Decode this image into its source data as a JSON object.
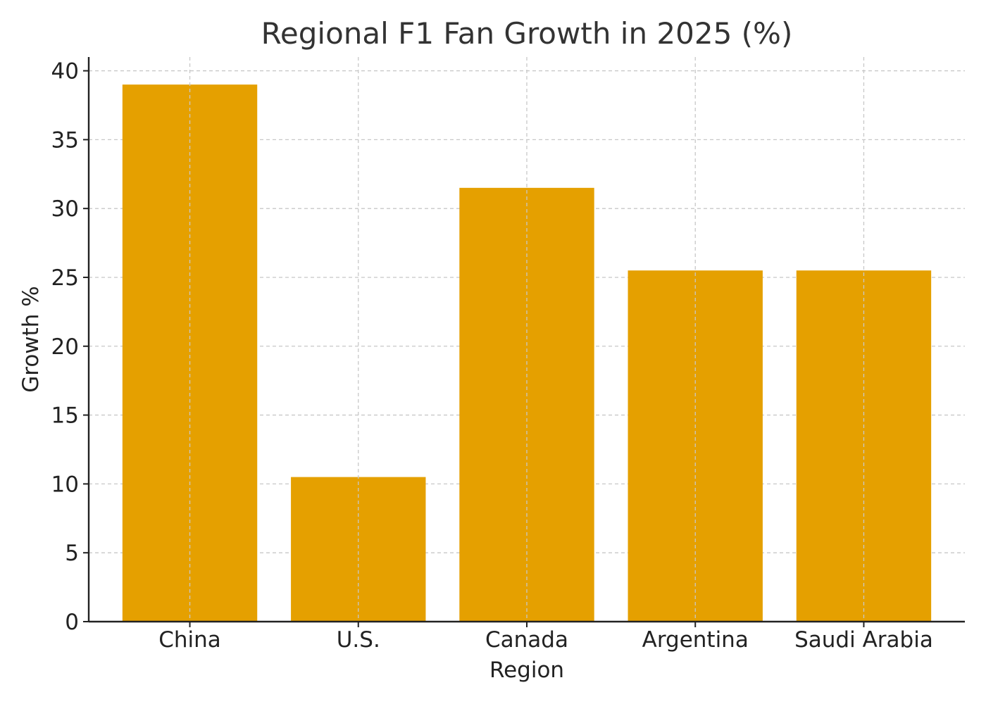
{
  "chart_data": {
    "type": "bar",
    "title": "Regional F1 Fan Growth in 2025 (%)",
    "xlabel": "Region",
    "ylabel": "Growth %",
    "categories": [
      "China",
      "U.S.",
      "Canada",
      "Argentina",
      "Saudi Arabia"
    ],
    "values": [
      39,
      10.5,
      31.5,
      25.5,
      25.5
    ],
    "ylim": [
      0,
      41
    ],
    "yticks": [
      0,
      5,
      10,
      15,
      20,
      25,
      30,
      35,
      40
    ],
    "grid": true,
    "legend": "none",
    "bar_color": "#E5A000"
  }
}
